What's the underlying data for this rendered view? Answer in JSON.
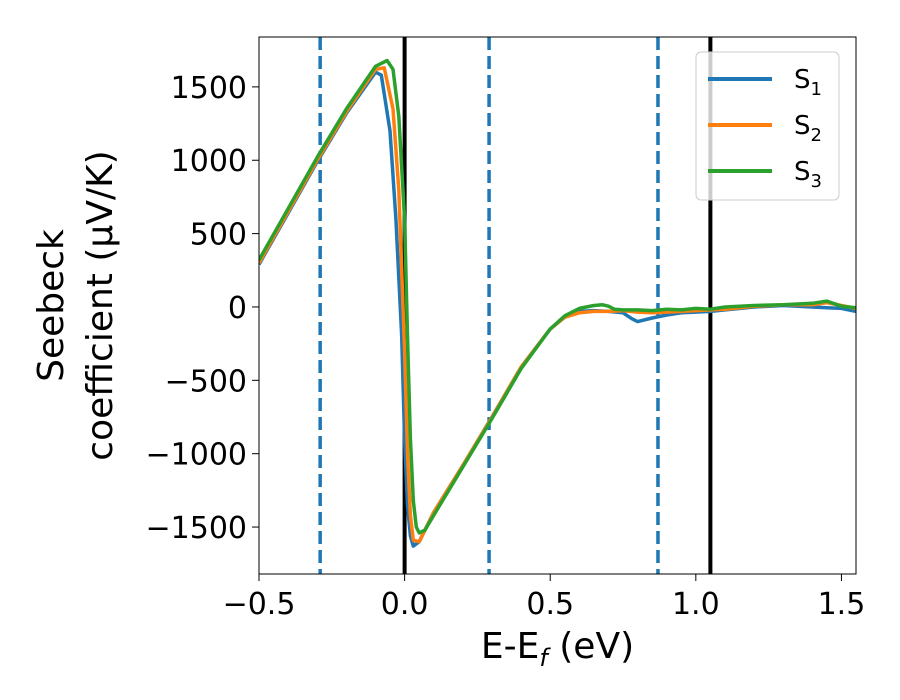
{
  "chart_data": {
    "type": "line",
    "xlabel_base": "E-E",
    "xlabel_sub": "f",
    "xlabel_tail": " (eV)",
    "ylabel_line1": "Seebeck",
    "ylabel_line2": "coefficient  (μV/K)",
    "xlim": [
      -0.5,
      1.55
    ],
    "ylim": [
      -1820,
      1840
    ],
    "xticks": [
      -0.5,
      0.0,
      0.5,
      1.0,
      1.5
    ],
    "xtick_labels": [
      "−0.5",
      "0.0",
      "0.5",
      "1.0",
      "1.5"
    ],
    "yticks": [
      -1500,
      -1000,
      -500,
      0,
      500,
      1000,
      1500
    ],
    "ytick_labels": [
      "−1500",
      "−1000",
      "−500",
      "0",
      "500",
      "1000",
      "1500"
    ],
    "grid": false,
    "legend_position": "top-right",
    "vlines": [
      {
        "x": -0.29,
        "style": "dashed",
        "color": "#1f77b4"
      },
      {
        "x": 0.0,
        "style": "solid",
        "color": "#000000"
      },
      {
        "x": 0.29,
        "style": "dashed",
        "color": "#1f77b4"
      },
      {
        "x": 0.87,
        "style": "dashed",
        "color": "#1f77b4"
      },
      {
        "x": 1.05,
        "style": "solid",
        "color": "#000000"
      }
    ],
    "series": [
      {
        "name": "S",
        "sub": "1",
        "color": "#1f77b4",
        "x": [
          -0.5,
          -0.4,
          -0.3,
          -0.2,
          -0.1,
          -0.08,
          -0.05,
          -0.03,
          -0.01,
          0.0,
          0.01,
          0.02,
          0.03,
          0.05,
          0.08,
          0.1,
          0.2,
          0.3,
          0.4,
          0.5,
          0.55,
          0.6,
          0.65,
          0.7,
          0.75,
          0.78,
          0.8,
          0.85,
          0.9,
          0.95,
          1.0,
          1.05,
          1.1,
          1.2,
          1.3,
          1.4,
          1.45,
          1.5,
          1.55
        ],
        "y": [
          290,
          640,
          990,
          1320,
          1600,
          1580,
          1200,
          600,
          -200,
          -900,
          -1350,
          -1560,
          -1630,
          -1600,
          -1480,
          -1400,
          -1080,
          -750,
          -410,
          -150,
          -70,
          -30,
          -25,
          -30,
          -40,
          -80,
          -100,
          -75,
          -55,
          -40,
          -35,
          -30,
          -20,
          0,
          10,
          0,
          -5,
          -10,
          -30
        ]
      },
      {
        "name": "S",
        "sub": "2",
        "color": "#ff7f0e",
        "x": [
          -0.5,
          -0.4,
          -0.3,
          -0.2,
          -0.1,
          -0.07,
          -0.04,
          -0.02,
          0.0,
          0.01,
          0.02,
          0.03,
          0.05,
          0.08,
          0.1,
          0.2,
          0.3,
          0.4,
          0.5,
          0.55,
          0.6,
          0.65,
          0.7,
          0.75,
          0.8,
          0.85,
          0.9,
          0.95,
          1.0,
          1.05,
          1.1,
          1.2,
          1.3,
          1.4,
          1.45,
          1.5,
          1.55
        ],
        "y": [
          300,
          650,
          1000,
          1330,
          1620,
          1630,
          1350,
          800,
          -300,
          -1000,
          -1420,
          -1590,
          -1600,
          -1480,
          -1400,
          -1080,
          -750,
          -410,
          -150,
          -70,
          -40,
          -30,
          -30,
          -25,
          -35,
          -40,
          -35,
          -30,
          -25,
          -20,
          -15,
          5,
          15,
          15,
          30,
          10,
          -10
        ]
      },
      {
        "name": "S",
        "sub": "3",
        "color": "#2ca02c",
        "x": [
          -0.5,
          -0.4,
          -0.3,
          -0.2,
          -0.1,
          -0.06,
          -0.04,
          -0.02,
          0.0,
          0.01,
          0.02,
          0.03,
          0.04,
          0.05,
          0.07,
          0.1,
          0.2,
          0.3,
          0.4,
          0.5,
          0.55,
          0.6,
          0.65,
          0.68,
          0.7,
          0.72,
          0.75,
          0.8,
          0.85,
          0.9,
          0.95,
          1.0,
          1.05,
          1.1,
          1.2,
          1.3,
          1.4,
          1.45,
          1.5,
          1.55
        ],
        "y": [
          320,
          670,
          1020,
          1350,
          1640,
          1680,
          1620,
          1300,
          600,
          -200,
          -900,
          -1320,
          -1500,
          -1540,
          -1520,
          -1420,
          -1090,
          -760,
          -420,
          -150,
          -60,
          -10,
          10,
          15,
          5,
          -15,
          -20,
          -20,
          -25,
          -15,
          -20,
          -10,
          -15,
          0,
          10,
          15,
          25,
          40,
          5,
          -5
        ]
      }
    ]
  }
}
